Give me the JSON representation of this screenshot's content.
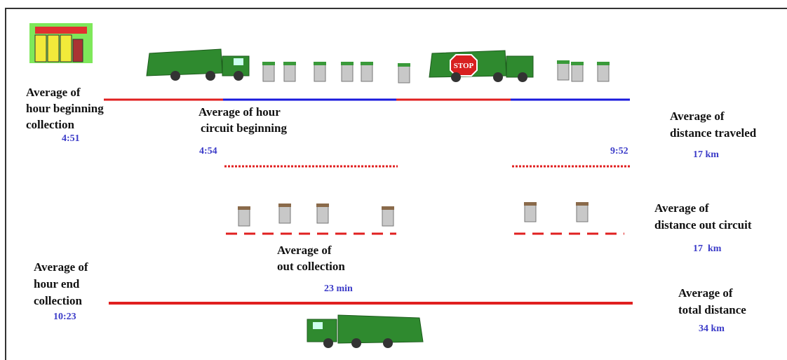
{
  "hour_beginning": {
    "lines": [
      "Average of",
      "hour beginning",
      "collection"
    ],
    "value": "4:51"
  },
  "circuit_beginning": {
    "lines": [
      "Average of hour",
      "circuit beginning"
    ],
    "start": "4:54",
    "end": "9:52"
  },
  "distance_traveled": {
    "lines": [
      "Average of",
      "distance traveled"
    ],
    "value": "17 km"
  },
  "distance_out_circuit": {
    "lines": [
      "Average of",
      "distance out circuit"
    ],
    "value": "17  km"
  },
  "out_collection": {
    "lines": [
      "Average of",
      "out collection"
    ],
    "value": "23 min"
  },
  "hour_end": {
    "lines": [
      "Average of",
      "hour end",
      "collection"
    ],
    "value": "10:23"
  },
  "total_distance": {
    "lines": [
      "Average of",
      "total distance"
    ],
    "value": "34 km"
  },
  "stop_sign": "STOP"
}
